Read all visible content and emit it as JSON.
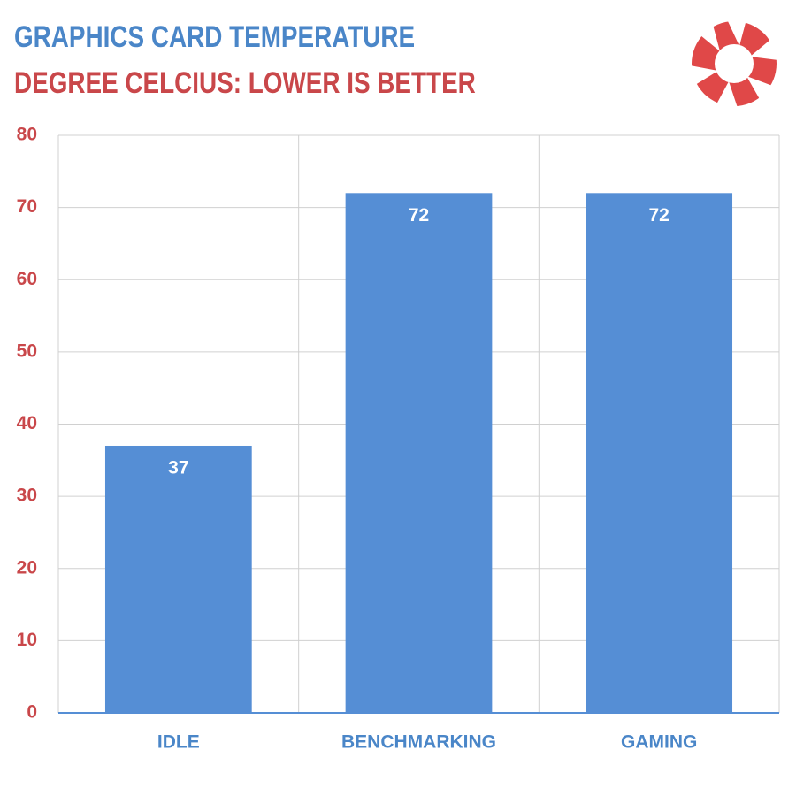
{
  "chart_data": {
    "type": "bar",
    "title": "GRAPHICS CARD TEMPERATURE",
    "subtitle": "DEGREE CELCIUS: LOWER IS BETTER",
    "categories": [
      "IDLE",
      "BENCHMARKING",
      "GAMING"
    ],
    "values": [
      37,
      72,
      72
    ],
    "color": "#558ed5",
    "ylim": [
      0,
      80
    ],
    "yticks": [
      0,
      10,
      20,
      30,
      40,
      50,
      60,
      70,
      80
    ],
    "grid": true
  }
}
